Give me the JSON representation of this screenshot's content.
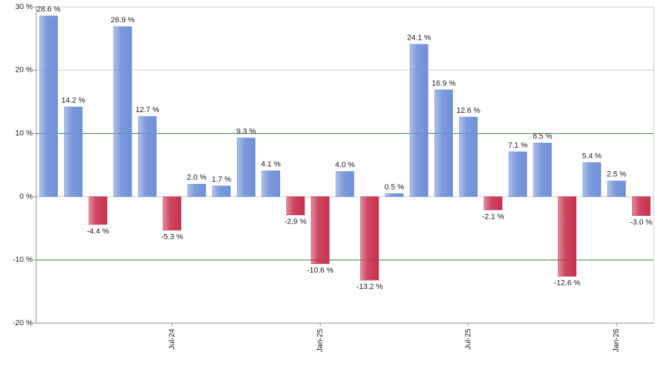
{
  "chart_data": {
    "type": "bar",
    "categories": [
      null,
      null,
      null,
      null,
      null,
      "Jul-24",
      null,
      null,
      null,
      null,
      null,
      "Jan-25",
      null,
      null,
      null,
      null,
      null,
      "Jul-25",
      null,
      null,
      null,
      null,
      null,
      "Jan-26",
      null
    ],
    "values": [
      28.6,
      14.2,
      -4.4,
      26.9,
      12.7,
      -5.3,
      2.0,
      1.7,
      9.3,
      4.1,
      -2.9,
      -10.6,
      4.0,
      -13.2,
      0.5,
      24.1,
      16.9,
      12.6,
      -2.1,
      7.1,
      8.5,
      -12.6,
      5.4,
      2.5,
      -3.0
    ],
    "value_labels": [
      "28.6 %",
      "14.2 %",
      "-4.4 %",
      "26.9 %",
      "12.7 %",
      "-5.3 %",
      "2.0 %",
      "1.7 %",
      "9.3 %",
      "4.1 %",
      "-2.9 %",
      "-10.6 %",
      "4.0 %",
      "-13.2 %",
      "0.5 %",
      "24.1 %",
      "16.9 %",
      "12.6 %",
      "-2.1 %",
      "7.1 %",
      "8.5 %",
      "-12.6 %",
      "5.4 %",
      "2.5 %",
      "-3.0 %"
    ],
    "positive_color": "#6f8fd8",
    "negative_color": "#c8314f",
    "ylim": [
      -20,
      30
    ],
    "yticks": [
      {
        "value": -20,
        "label": "-20 %"
      },
      {
        "value": -10,
        "label": "-10 %"
      },
      {
        "value": 0,
        "label": "0 %"
      },
      {
        "value": 10,
        "label": "10 %"
      },
      {
        "value": 20,
        "label": "20 %"
      },
      {
        "value": 30,
        "label": "30 %"
      }
    ],
    "grid": true,
    "grid_color": "#cccccc",
    "reference_lines": [
      10,
      -10
    ],
    "reference_color": "#2e7d32"
  }
}
